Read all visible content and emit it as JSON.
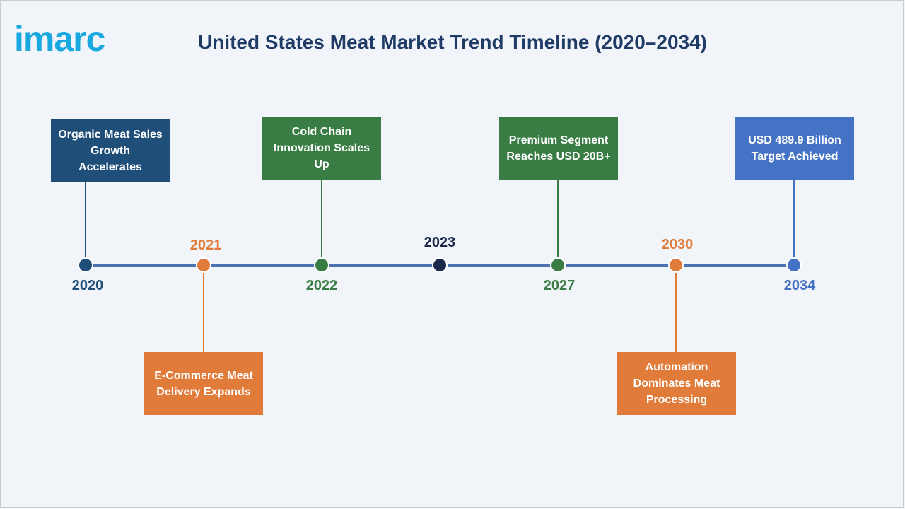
{
  "header": {
    "logo_text": "imarc",
    "title": "United States Meat Market Trend Timeline (2020–2034)"
  },
  "colors": {
    "navy": "#1f4e79",
    "orange": "#e07b39",
    "green": "#3a7d44",
    "dark_navy": "#1b2a4a",
    "blue": "#4472c4",
    "axis": "#4c72b0"
  },
  "timeline": {
    "milestones": [
      {
        "year": "2020",
        "event": "Organic Meat Sales Growth Accelerates",
        "color": "#1f4e79"
      },
      {
        "year": "2021",
        "event": "E-Commerce Meat Delivery Expands",
        "color": "#e07b39"
      },
      {
        "year": "2022",
        "event": "Cold Chain Innovation Scales Up",
        "color": "#3a7d44"
      },
      {
        "year": "2023",
        "event": "",
        "color": "#1b2a4a"
      },
      {
        "year": "2027",
        "event": "Premium Segment Reaches USD 20B+",
        "color": "#3a7d44"
      },
      {
        "year": "2030",
        "event": "Automation Dominates Meat Processing",
        "color": "#e07b39"
      },
      {
        "year": "2034",
        "event": "USD 489.9 Billion Target Achieved",
        "color": "#4472c4"
      }
    ]
  }
}
